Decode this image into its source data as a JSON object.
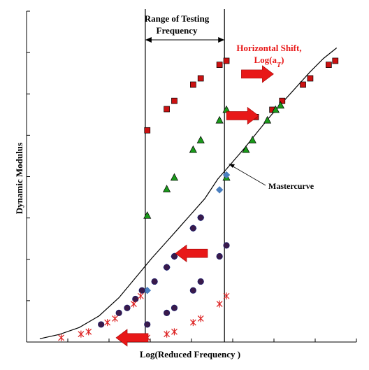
{
  "chart_data": {
    "type": "scatter",
    "title": "",
    "xlabel": "Log(Reduced Frequency )",
    "ylabel": "Dynamic Modulus",
    "xlim": [
      0,
      100
    ],
    "ylim": [
      0,
      100
    ],
    "grid": false,
    "legend": "none",
    "annotations": {
      "range_title_line1": "Range of Testing",
      "range_title_line2": "Frequency",
      "range_bounds_x": [
        36.0,
        60.0
      ],
      "shift_title_line1": "Horizontal Shift,",
      "shift_title_line2": "Log(a",
      "shift_title_sub": "T",
      "shift_title_close": ")",
      "mastercurve_label": "Mastercurve"
    },
    "mastercurve": {
      "x": [
        4.0,
        10.0,
        16.0,
        22.0,
        28.0,
        34.0,
        38.0,
        42.0,
        46.0,
        50.0,
        54.0,
        58.0,
        62.0,
        66.0,
        70.0,
        74.0,
        78.0,
        82.0,
        86.0,
        90.0,
        94.0
      ],
      "y": [
        1.0,
        2.3,
        4.4,
        7.9,
        13.4,
        20.6,
        25.4,
        29.8,
        34.3,
        38.8,
        43.3,
        49.3,
        53.9,
        58.5,
        63.5,
        68.4,
        72.9,
        77.3,
        81.7,
        85.7,
        88.9
      ]
    },
    "series": [
      {
        "name": "",
        "marker": "square",
        "color": "#cc1111",
        "x": [
          36.6,
          42.5,
          44.8,
          50.5,
          52.8,
          58.5,
          60.6,
          69.5,
          74.5,
          77.5,
          83.8,
          86.0,
          91.6,
          93.6
        ],
        "y": [
          64.0,
          70.4,
          72.9,
          77.8,
          79.7,
          83.8,
          85.0,
          68.0,
          70.2,
          72.9,
          77.8,
          79.7,
          83.8,
          85.0
        ]
      },
      {
        "name": "",
        "marker": "triangle",
        "color": "#1a9a1a",
        "x": [
          36.6,
          42.5,
          44.8,
          50.5,
          52.8,
          58.5,
          60.6,
          60.6,
          66.5,
          68.5,
          73.0,
          75.5,
          77.0
        ],
        "y": [
          38.2,
          46.2,
          49.7,
          58.1,
          61.0,
          67.0,
          70.2,
          49.7,
          58.1,
          61.0,
          67.0,
          70.2,
          71.5
        ]
      },
      {
        "name": "",
        "marker": "diamond",
        "color": "#4a7fbf",
        "x": [
          36.6,
          42.5,
          44.8,
          50.5,
          52.8,
          58.5,
          60.6
        ],
        "y": [
          15.6,
          22.6,
          25.9,
          34.4,
          37.6,
          46.0,
          50.5
        ]
      },
      {
        "name": "",
        "marker": "circle",
        "color": "#3a1a4a",
        "x": [
          36.6,
          42.5,
          44.8,
          50.5,
          52.8,
          58.5,
          60.6,
          22.6,
          28.0,
          30.5,
          33.0,
          35.0,
          38.8,
          42.5,
          44.8,
          50.5,
          52.8
        ],
        "y": [
          5.3,
          8.8,
          10.3,
          15.6,
          18.3,
          25.9,
          29.2,
          5.3,
          8.8,
          10.3,
          13.0,
          15.6,
          18.3,
          22.6,
          25.9,
          34.4,
          37.6
        ]
      },
      {
        "name": "",
        "marker": "star",
        "color": "#dd2222",
        "x": [
          36.6,
          42.5,
          44.8,
          50.5,
          52.8,
          58.5,
          60.6,
          10.5,
          16.5,
          18.8,
          24.5,
          26.8,
          32.5,
          34.6
        ],
        "y": [
          1.3,
          2.4,
          3.1,
          5.9,
          7.1,
          11.5,
          13.9,
          1.3,
          2.4,
          3.1,
          5.9,
          7.1,
          11.5,
          13.9
        ]
      }
    ],
    "shift_arrows": [
      {
        "direction": "right",
        "x": 70.0,
        "y": 81.0
      },
      {
        "direction": "right",
        "x": 65.5,
        "y": 68.4
      },
      {
        "direction": "left",
        "x": 50.0,
        "y": 26.8
      },
      {
        "direction": "left",
        "x": 32.0,
        "y": 1.3
      }
    ],
    "colors": {
      "axis": "#000000",
      "curve": "#000000",
      "arrow": "#e81818",
      "shift_text": "#e81818"
    }
  }
}
